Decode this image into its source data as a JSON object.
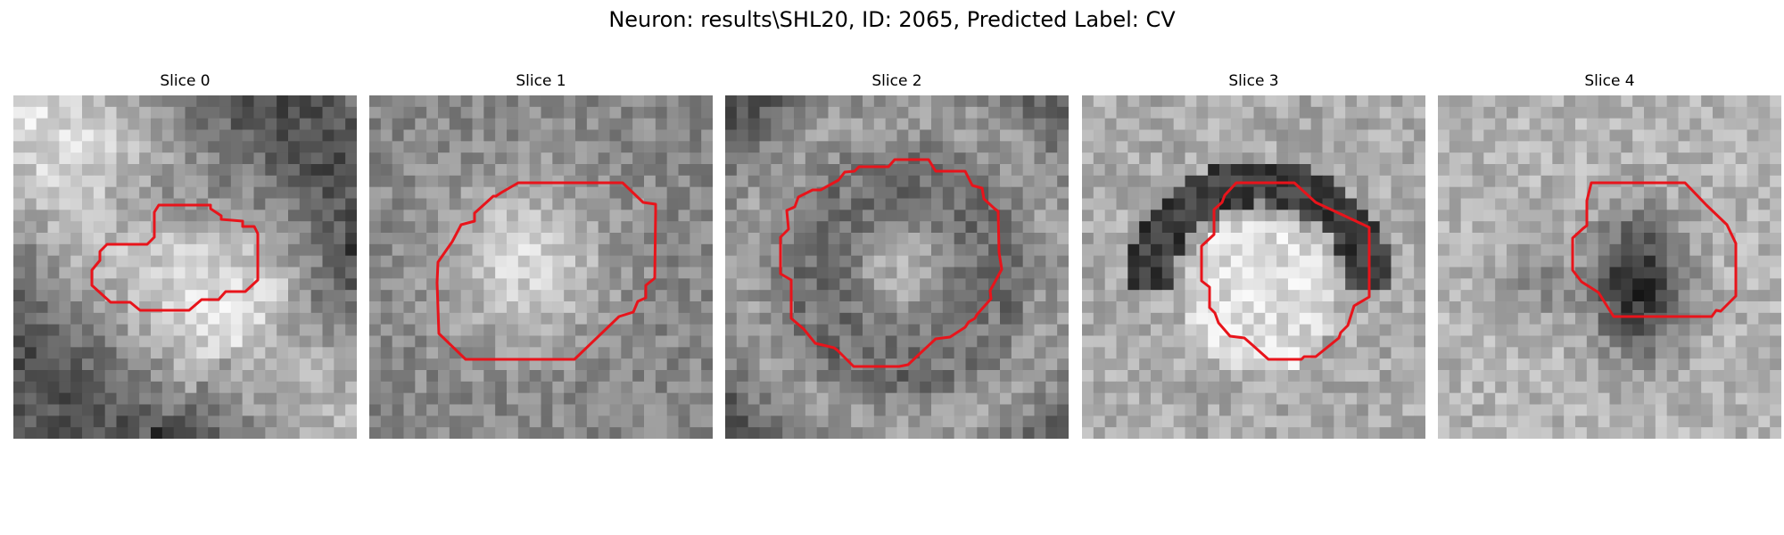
{
  "figure": {
    "title": "Neuron: results\\SHL20, ID: 2065, Predicted Label: CV"
  },
  "panels": [
    {
      "title": "Slice 0",
      "seed": 11,
      "pattern": "diagonal",
      "contour_color": "#e8141b"
    },
    {
      "title": "Slice 1",
      "seed": 23,
      "pattern": "bright_blob",
      "contour_color": "#e8141b"
    },
    {
      "title": "Slice 2",
      "seed": 37,
      "pattern": "dark_ring",
      "contour_color": "#e8141b"
    },
    {
      "title": "Slice 3",
      "seed": 41,
      "pattern": "dark_arc",
      "contour_color": "#e8141b"
    },
    {
      "title": "Slice 4",
      "seed": 53,
      "pattern": "dark_core",
      "contour_color": "#e8141b"
    }
  ]
}
